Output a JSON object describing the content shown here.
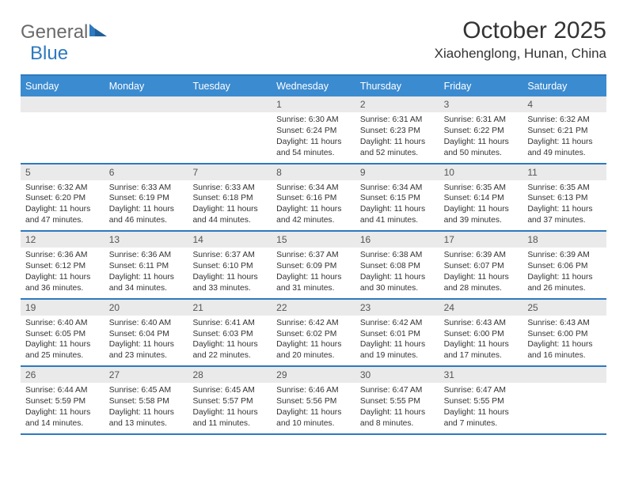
{
  "brand": {
    "name1": "General",
    "name2": "Blue"
  },
  "title": "October 2025",
  "location": "Xiaohenglong, Hunan, China",
  "colors": {
    "accent": "#2e79bf",
    "header_bg": "#3b8bd0",
    "daynum_bg": "#eaeaea",
    "text": "#333333",
    "page_bg": "#ffffff"
  },
  "day_names": [
    "Sunday",
    "Monday",
    "Tuesday",
    "Wednesday",
    "Thursday",
    "Friday",
    "Saturday"
  ],
  "weeks": [
    [
      {
        "day": "",
        "empty": true
      },
      {
        "day": "",
        "empty": true
      },
      {
        "day": "",
        "empty": true
      },
      {
        "day": "1",
        "sunrise": "Sunrise: 6:30 AM",
        "sunset": "Sunset: 6:24 PM",
        "daylight": "Daylight: 11 hours and 54 minutes."
      },
      {
        "day": "2",
        "sunrise": "Sunrise: 6:31 AM",
        "sunset": "Sunset: 6:23 PM",
        "daylight": "Daylight: 11 hours and 52 minutes."
      },
      {
        "day": "3",
        "sunrise": "Sunrise: 6:31 AM",
        "sunset": "Sunset: 6:22 PM",
        "daylight": "Daylight: 11 hours and 50 minutes."
      },
      {
        "day": "4",
        "sunrise": "Sunrise: 6:32 AM",
        "sunset": "Sunset: 6:21 PM",
        "daylight": "Daylight: 11 hours and 49 minutes."
      }
    ],
    [
      {
        "day": "5",
        "sunrise": "Sunrise: 6:32 AM",
        "sunset": "Sunset: 6:20 PM",
        "daylight": "Daylight: 11 hours and 47 minutes."
      },
      {
        "day": "6",
        "sunrise": "Sunrise: 6:33 AM",
        "sunset": "Sunset: 6:19 PM",
        "daylight": "Daylight: 11 hours and 46 minutes."
      },
      {
        "day": "7",
        "sunrise": "Sunrise: 6:33 AM",
        "sunset": "Sunset: 6:18 PM",
        "daylight": "Daylight: 11 hours and 44 minutes."
      },
      {
        "day": "8",
        "sunrise": "Sunrise: 6:34 AM",
        "sunset": "Sunset: 6:16 PM",
        "daylight": "Daylight: 11 hours and 42 minutes."
      },
      {
        "day": "9",
        "sunrise": "Sunrise: 6:34 AM",
        "sunset": "Sunset: 6:15 PM",
        "daylight": "Daylight: 11 hours and 41 minutes."
      },
      {
        "day": "10",
        "sunrise": "Sunrise: 6:35 AM",
        "sunset": "Sunset: 6:14 PM",
        "daylight": "Daylight: 11 hours and 39 minutes."
      },
      {
        "day": "11",
        "sunrise": "Sunrise: 6:35 AM",
        "sunset": "Sunset: 6:13 PM",
        "daylight": "Daylight: 11 hours and 37 minutes."
      }
    ],
    [
      {
        "day": "12",
        "sunrise": "Sunrise: 6:36 AM",
        "sunset": "Sunset: 6:12 PM",
        "daylight": "Daylight: 11 hours and 36 minutes."
      },
      {
        "day": "13",
        "sunrise": "Sunrise: 6:36 AM",
        "sunset": "Sunset: 6:11 PM",
        "daylight": "Daylight: 11 hours and 34 minutes."
      },
      {
        "day": "14",
        "sunrise": "Sunrise: 6:37 AM",
        "sunset": "Sunset: 6:10 PM",
        "daylight": "Daylight: 11 hours and 33 minutes."
      },
      {
        "day": "15",
        "sunrise": "Sunrise: 6:37 AM",
        "sunset": "Sunset: 6:09 PM",
        "daylight": "Daylight: 11 hours and 31 minutes."
      },
      {
        "day": "16",
        "sunrise": "Sunrise: 6:38 AM",
        "sunset": "Sunset: 6:08 PM",
        "daylight": "Daylight: 11 hours and 30 minutes."
      },
      {
        "day": "17",
        "sunrise": "Sunrise: 6:39 AM",
        "sunset": "Sunset: 6:07 PM",
        "daylight": "Daylight: 11 hours and 28 minutes."
      },
      {
        "day": "18",
        "sunrise": "Sunrise: 6:39 AM",
        "sunset": "Sunset: 6:06 PM",
        "daylight": "Daylight: 11 hours and 26 minutes."
      }
    ],
    [
      {
        "day": "19",
        "sunrise": "Sunrise: 6:40 AM",
        "sunset": "Sunset: 6:05 PM",
        "daylight": "Daylight: 11 hours and 25 minutes."
      },
      {
        "day": "20",
        "sunrise": "Sunrise: 6:40 AM",
        "sunset": "Sunset: 6:04 PM",
        "daylight": "Daylight: 11 hours and 23 minutes."
      },
      {
        "day": "21",
        "sunrise": "Sunrise: 6:41 AM",
        "sunset": "Sunset: 6:03 PM",
        "daylight": "Daylight: 11 hours and 22 minutes."
      },
      {
        "day": "22",
        "sunrise": "Sunrise: 6:42 AM",
        "sunset": "Sunset: 6:02 PM",
        "daylight": "Daylight: 11 hours and 20 minutes."
      },
      {
        "day": "23",
        "sunrise": "Sunrise: 6:42 AM",
        "sunset": "Sunset: 6:01 PM",
        "daylight": "Daylight: 11 hours and 19 minutes."
      },
      {
        "day": "24",
        "sunrise": "Sunrise: 6:43 AM",
        "sunset": "Sunset: 6:00 PM",
        "daylight": "Daylight: 11 hours and 17 minutes."
      },
      {
        "day": "25",
        "sunrise": "Sunrise: 6:43 AM",
        "sunset": "Sunset: 6:00 PM",
        "daylight": "Daylight: 11 hours and 16 minutes."
      }
    ],
    [
      {
        "day": "26",
        "sunrise": "Sunrise: 6:44 AM",
        "sunset": "Sunset: 5:59 PM",
        "daylight": "Daylight: 11 hours and 14 minutes."
      },
      {
        "day": "27",
        "sunrise": "Sunrise: 6:45 AM",
        "sunset": "Sunset: 5:58 PM",
        "daylight": "Daylight: 11 hours and 13 minutes."
      },
      {
        "day": "28",
        "sunrise": "Sunrise: 6:45 AM",
        "sunset": "Sunset: 5:57 PM",
        "daylight": "Daylight: 11 hours and 11 minutes."
      },
      {
        "day": "29",
        "sunrise": "Sunrise: 6:46 AM",
        "sunset": "Sunset: 5:56 PM",
        "daylight": "Daylight: 11 hours and 10 minutes."
      },
      {
        "day": "30",
        "sunrise": "Sunrise: 6:47 AM",
        "sunset": "Sunset: 5:55 PM",
        "daylight": "Daylight: 11 hours and 8 minutes."
      },
      {
        "day": "31",
        "sunrise": "Sunrise: 6:47 AM",
        "sunset": "Sunset: 5:55 PM",
        "daylight": "Daylight: 11 hours and 7 minutes."
      },
      {
        "day": "",
        "empty": true
      }
    ]
  ]
}
